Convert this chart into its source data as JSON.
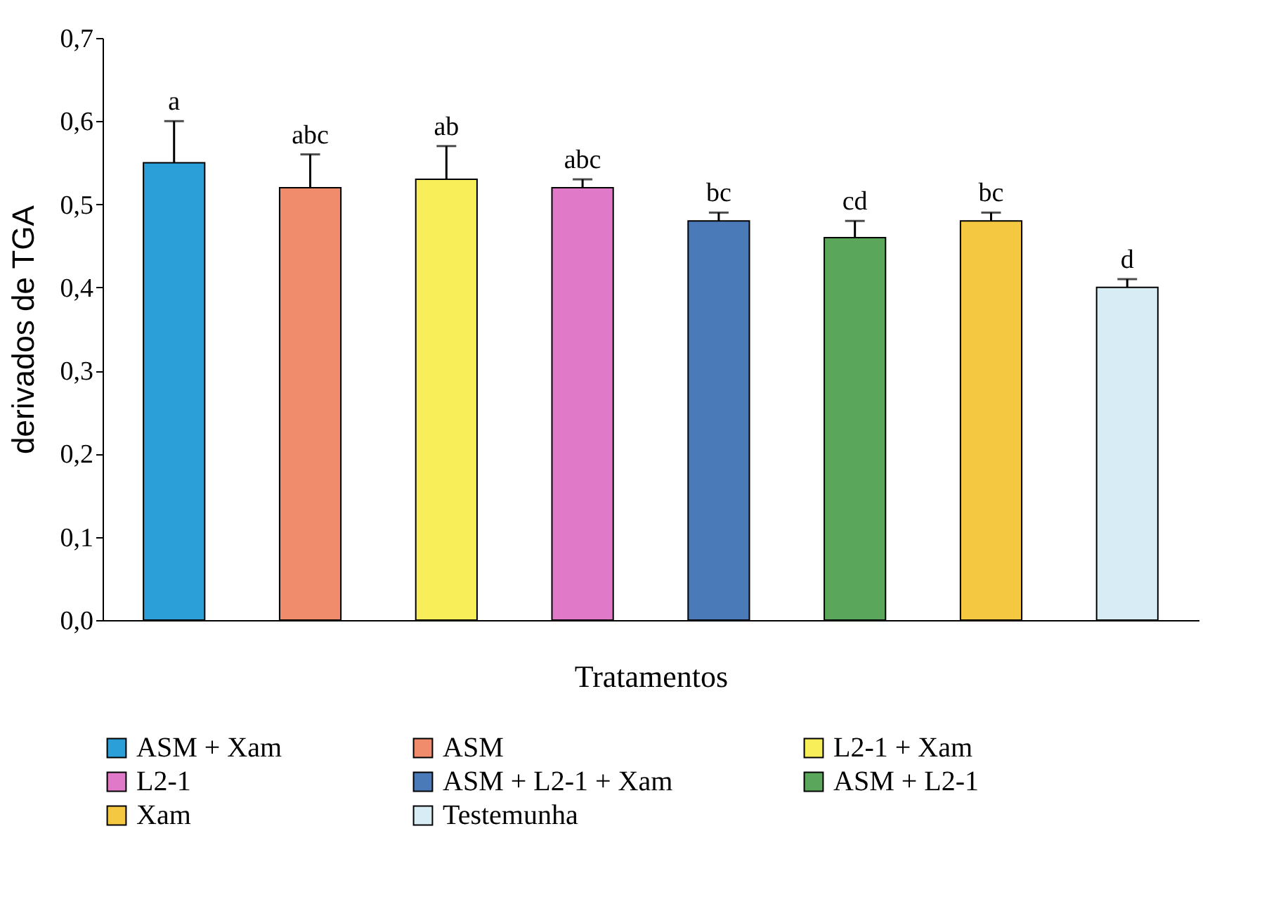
{
  "chart_data": {
    "type": "bar",
    "xlabel": "Tratamentos",
    "ylabel": "derivados de TGA",
    "categories": [
      null,
      null,
      null,
      null,
      null,
      null,
      null,
      null
    ],
    "series": [
      {
        "name": "ASM + Xam",
        "color": "#2b9fd8",
        "values": [
          0.55,
          null,
          null,
          null,
          null,
          null,
          null,
          null
        ],
        "errors": [
          0.05,
          null,
          null,
          null,
          null,
          null,
          null,
          null
        ],
        "value_labels": [
          "a",
          null,
          null,
          null,
          null,
          null,
          null,
          null
        ]
      },
      {
        "name": "ASM",
        "color": "#f08c6c",
        "values": [
          null,
          0.52,
          null,
          null,
          null,
          null,
          null,
          null
        ],
        "errors": [
          null,
          0.04,
          null,
          null,
          null,
          null,
          null,
          null
        ],
        "value_labels": [
          null,
          "abc",
          null,
          null,
          null,
          null,
          null,
          null
        ]
      },
      {
        "name": "L2-1 + Xam",
        "color": "#f7ee5a",
        "values": [
          null,
          null,
          0.53,
          null,
          null,
          null,
          null,
          null
        ],
        "errors": [
          null,
          null,
          0.04,
          null,
          null,
          null,
          null,
          null
        ],
        "value_labels": [
          null,
          null,
          "ab",
          null,
          null,
          null,
          null,
          null
        ]
      },
      {
        "name": "L2-1",
        "color": "#e07ac8",
        "values": [
          null,
          null,
          null,
          0.52,
          null,
          null,
          null,
          null
        ],
        "errors": [
          null,
          null,
          null,
          0.01,
          null,
          null,
          null,
          null
        ],
        "value_labels": [
          null,
          null,
          null,
          "abc",
          null,
          null,
          null,
          null
        ]
      },
      {
        "name": "ASM + L2-1 + Xam",
        "color": "#4a7ab8",
        "values": [
          null,
          null,
          null,
          null,
          0.48,
          null,
          null,
          null
        ],
        "errors": [
          null,
          null,
          null,
          null,
          0.01,
          null,
          null,
          null
        ],
        "value_labels": [
          null,
          null,
          null,
          null,
          "bc",
          null,
          null,
          null
        ]
      },
      {
        "name": "ASM + L2-1",
        "color": "#5aa65a",
        "values": [
          null,
          null,
          null,
          null,
          null,
          0.46,
          null,
          null
        ],
        "errors": [
          null,
          null,
          null,
          null,
          null,
          0.02,
          null,
          null
        ],
        "value_labels": [
          null,
          null,
          null,
          null,
          null,
          "cd",
          null,
          null
        ]
      },
      {
        "name": "Xam",
        "color": "#f5c842",
        "values": [
          null,
          null,
          null,
          null,
          null,
          null,
          0.48,
          null
        ],
        "errors": [
          null,
          null,
          null,
          null,
          null,
          null,
          0.01,
          null
        ],
        "value_labels": [
          null,
          null,
          null,
          null,
          null,
          null,
          "bc",
          null
        ]
      },
      {
        "name": "Testemunha",
        "color": "#d8ecf5",
        "values": [
          null,
          null,
          null,
          null,
          null,
          null,
          null,
          0.4
        ],
        "errors": [
          null,
          null,
          null,
          null,
          null,
          null,
          null,
          0.01
        ],
        "value_labels": [
          null,
          null,
          null,
          null,
          null,
          null,
          null,
          "d"
        ]
      }
    ],
    "ylim": [
      0,
      0.7
    ],
    "yticks": [
      {
        "value": 0,
        "label": "0,0"
      },
      {
        "value": 0.1,
        "label": "0,1"
      },
      {
        "value": 0.2,
        "label": "0,2"
      },
      {
        "value": 0.3,
        "label": "0,3"
      },
      {
        "value": 0.4,
        "label": "0,4"
      },
      {
        "value": 0.5,
        "label": "0,5"
      },
      {
        "value": 0.6,
        "label": "0,6"
      },
      {
        "value": 0.7,
        "label": "0,7"
      }
    ],
    "grid": false,
    "legend": "bottom",
    "tick_labels": "y"
  }
}
